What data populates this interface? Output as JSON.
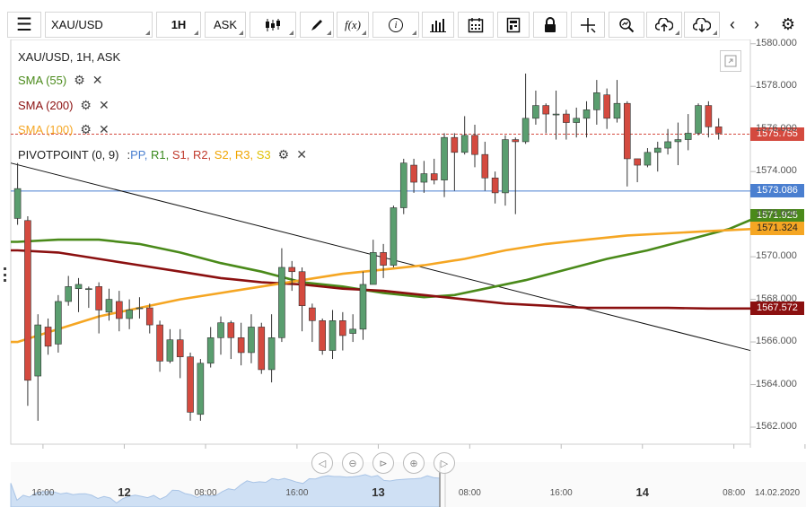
{
  "toolbar": {
    "menu_icon": "hamburger-icon",
    "symbol": "XAU/USD",
    "timeframe": "1H",
    "price_type": "ASK",
    "tools": [
      "candles-icon",
      "draw-icon",
      "function-icon",
      "info-icon",
      "bar-chart-icon",
      "calendar-icon",
      "calculator-icon",
      "lock-icon",
      "crosshair-icon",
      "zoom-icon",
      "upload-icon",
      "download-icon",
      "prev-icon",
      "next-icon",
      "settings-icon"
    ]
  },
  "legend": {
    "title": "XAU/USD, 1H, ASK",
    "sma55": "SMA (55)",
    "sma200": "SMA (200)",
    "sma100": "SMA (100)",
    "pivot": "PIVOTPOINT (0, 9)",
    "pivot_sep": ":",
    "pivot_items": [
      {
        "label": "PP,",
        "color": "#4a7fd0"
      },
      {
        "label": "R1,",
        "color": "#3a8a1e"
      },
      {
        "label": "S1,",
        "color": "#c0392b"
      },
      {
        "label": "R2,",
        "color": "#c0392b"
      },
      {
        "label": "S2,",
        "color": "#f0a500"
      },
      {
        "label": "R3,",
        "color": "#f0a500"
      },
      {
        "label": "S3",
        "color": "#e0c000"
      }
    ]
  },
  "colors": {
    "up": "#5a9e6f",
    "down": "#d44a3f",
    "sma55": "#4a8a1a",
    "sma200": "#8b1010",
    "sma100": "#f5a623",
    "pp": "#4a7fd0",
    "trend": "#111111"
  },
  "chart_data": {
    "type": "line",
    "title": "XAU/USD, 1H, ASK",
    "y_axis": {
      "min": 1561.2,
      "max": 1580.2,
      "ticks": [
        "1562.000",
        "1564.000",
        "1566.000",
        "1568.000",
        "1570.000",
        "1572.000",
        "1574.000",
        "1576.000",
        "1578.000",
        "1580.000"
      ]
    },
    "x_axis": {
      "ticks": [
        {
          "label": "16:00",
          "index": 2.5,
          "bold": false
        },
        {
          "label": "12",
          "index": 10.5,
          "bold": true
        },
        {
          "label": "08:00",
          "index": 18.5,
          "bold": false
        },
        {
          "label": "16:00",
          "index": 27.5,
          "bold": false
        },
        {
          "label": "13",
          "index": 35.5,
          "bold": true
        },
        {
          "label": "08:00",
          "index": 44.5,
          "bold": false
        },
        {
          "label": "16:00",
          "index": 53.5,
          "bold": false
        },
        {
          "label": "14",
          "index": 61.5,
          "bold": true
        },
        {
          "label": "08:00",
          "index": 70.5,
          "bold": false
        },
        {
          "label": "14.02.2020",
          "index": 77.5,
          "bold": false
        }
      ]
    },
    "candles": [
      [
        1571.8,
        1573.2,
        1574.4,
        1571.5
      ],
      [
        1571.7,
        1564.2,
        1571.9,
        1563.0
      ],
      [
        1564.4,
        1566.8,
        1567.3,
        1562.3
      ],
      [
        1566.7,
        1565.8,
        1567.1,
        1565.4
      ],
      [
        1565.9,
        1567.9,
        1568.2,
        1565.5
      ],
      [
        1567.9,
        1568.6,
        1569.1,
        1567.7
      ],
      [
        1568.5,
        1568.7,
        1569.0,
        1567.4
      ],
      [
        1568.5,
        1568.5,
        1568.6,
        1567.6
      ],
      [
        1568.6,
        1567.5,
        1568.8,
        1566.4
      ],
      [
        1567.4,
        1568.0,
        1568.5,
        1567.0
      ],
      [
        1567.9,
        1567.1,
        1568.4,
        1566.5
      ],
      [
        1567.1,
        1567.5,
        1568.0,
        1566.6
      ],
      [
        1567.6,
        1567.6,
        1568.1,
        1567.1
      ],
      [
        1567.6,
        1566.8,
        1567.8,
        1566.4
      ],
      [
        1566.8,
        1565.1,
        1567.0,
        1564.6
      ],
      [
        1565.1,
        1566.1,
        1566.6,
        1565.0
      ],
      [
        1566.1,
        1565.3,
        1566.6,
        1564.3
      ],
      [
        1565.3,
        1562.7,
        1565.5,
        1562.3
      ],
      [
        1562.6,
        1565.0,
        1565.2,
        1562.3
      ],
      [
        1565.0,
        1566.2,
        1566.7,
        1564.8
      ],
      [
        1566.2,
        1566.9,
        1567.2,
        1565.4
      ],
      [
        1566.9,
        1566.2,
        1567.0,
        1565.2
      ],
      [
        1566.2,
        1565.5,
        1566.9,
        1564.9
      ],
      [
        1565.5,
        1566.7,
        1567.3,
        1565.0
      ],
      [
        1566.7,
        1564.7,
        1566.9,
        1564.5
      ],
      [
        1564.7,
        1566.2,
        1567.3,
        1564.1
      ],
      [
        1566.2,
        1569.5,
        1570.4,
        1566.0
      ],
      [
        1569.5,
        1569.3,
        1569.8,
        1568.4
      ],
      [
        1569.3,
        1567.7,
        1569.5,
        1566.5
      ],
      [
        1567.6,
        1567.0,
        1567.8,
        1566.0
      ],
      [
        1567.0,
        1565.6,
        1567.1,
        1565.4
      ],
      [
        1565.6,
        1567.0,
        1567.5,
        1565.2
      ],
      [
        1567.0,
        1566.3,
        1567.4,
        1565.6
      ],
      [
        1566.4,
        1566.6,
        1567.3,
        1566.0
      ],
      [
        1566.6,
        1568.7,
        1569.3,
        1566.1
      ],
      [
        1568.7,
        1570.2,
        1570.8,
        1568.7
      ],
      [
        1570.2,
        1569.6,
        1570.6,
        1569.0
      ],
      [
        1569.6,
        1572.3,
        1572.4,
        1569.5
      ],
      [
        1572.3,
        1574.4,
        1574.6,
        1572.0
      ],
      [
        1574.3,
        1573.5,
        1574.6,
        1573.0
      ],
      [
        1573.5,
        1573.9,
        1574.5,
        1573.0
      ],
      [
        1573.9,
        1573.6,
        1574.6,
        1573.4
      ],
      [
        1573.6,
        1575.6,
        1575.8,
        1572.8
      ],
      [
        1575.6,
        1574.9,
        1575.8,
        1573.1
      ],
      [
        1574.9,
        1575.7,
        1576.6,
        1574.8
      ],
      [
        1575.7,
        1574.8,
        1576.2,
        1574.2
      ],
      [
        1574.8,
        1573.7,
        1575.4,
        1573.1
      ],
      [
        1573.7,
        1573.0,
        1574.0,
        1572.5
      ],
      [
        1573.0,
        1575.5,
        1575.7,
        1572.4
      ],
      [
        1575.5,
        1575.4,
        1575.6,
        1572.0
      ],
      [
        1575.4,
        1576.5,
        1578.6,
        1575.3
      ],
      [
        1576.5,
        1577.1,
        1577.8,
        1576.2
      ],
      [
        1577.1,
        1576.7,
        1577.2,
        1575.8
      ],
      [
        1576.7,
        1576.7,
        1577.8,
        1575.5
      ],
      [
        1576.7,
        1576.3,
        1576.9,
        1575.5
      ],
      [
        1576.3,
        1576.5,
        1577.0,
        1575.6
      ],
      [
        1576.5,
        1576.9,
        1577.3,
        1575.6
      ],
      [
        1576.9,
        1577.7,
        1578.3,
        1576.2
      ],
      [
        1577.6,
        1576.5,
        1577.9,
        1576.0
      ],
      [
        1576.5,
        1577.2,
        1578.3,
        1576.3
      ],
      [
        1577.2,
        1574.6,
        1577.3,
        1573.3
      ],
      [
        1574.6,
        1574.3,
        1574.6,
        1573.5
      ],
      [
        1574.3,
        1574.9,
        1575.1,
        1574.2
      ],
      [
        1574.9,
        1575.1,
        1575.4,
        1574.0
      ],
      [
        1575.1,
        1575.4,
        1576.0,
        1574.8
      ],
      [
        1575.4,
        1575.5,
        1576.3,
        1574.3
      ],
      [
        1575.5,
        1575.8,
        1576.7,
        1575.0
      ],
      [
        1575.8,
        1577.1,
        1577.2,
        1575.7
      ],
      [
        1577.1,
        1576.1,
        1577.3,
        1575.6
      ],
      [
        1576.1,
        1575.8,
        1576.5,
        1575.5
      ]
    ],
    "series": [
      {
        "name": "SMA (55)",
        "color": "#4a8a1a",
        "points": [
          [
            0,
            1570.7
          ],
          [
            4,
            1570.8
          ],
          [
            8,
            1570.8
          ],
          [
            12,
            1570.6
          ],
          [
            16,
            1570.2
          ],
          [
            20,
            1569.7
          ],
          [
            24,
            1569.3
          ],
          [
            28,
            1568.8
          ],
          [
            32,
            1568.6
          ],
          [
            36,
            1568.3
          ],
          [
            40,
            1568.1
          ],
          [
            43,
            1568.2
          ],
          [
            46,
            1568.5
          ],
          [
            50,
            1568.9
          ],
          [
            54,
            1569.4
          ],
          [
            58,
            1569.9
          ],
          [
            62,
            1570.3
          ],
          [
            66,
            1570.8
          ],
          [
            70,
            1571.3
          ],
          [
            73,
            1571.9
          ]
        ]
      },
      {
        "name": "SMA (200)",
        "color": "#8b1010",
        "points": [
          [
            0,
            1570.3
          ],
          [
            4,
            1570.2
          ],
          [
            8,
            1569.9
          ],
          [
            12,
            1569.6
          ],
          [
            16,
            1569.3
          ],
          [
            20,
            1569.0
          ],
          [
            24,
            1568.8
          ],
          [
            28,
            1568.7
          ],
          [
            32,
            1568.5
          ],
          [
            36,
            1568.4
          ],
          [
            40,
            1568.2
          ],
          [
            44,
            1568.0
          ],
          [
            48,
            1567.8
          ],
          [
            52,
            1567.7
          ],
          [
            56,
            1567.6
          ],
          [
            60,
            1567.6
          ],
          [
            64,
            1567.6
          ],
          [
            68,
            1567.57
          ],
          [
            73,
            1567.57
          ]
        ]
      },
      {
        "name": "SMA (100)",
        "color": "#f5a623",
        "points": [
          [
            0,
            1566.0
          ],
          [
            4,
            1566.6
          ],
          [
            8,
            1567.2
          ],
          [
            12,
            1567.6
          ],
          [
            16,
            1568.0
          ],
          [
            20,
            1568.3
          ],
          [
            24,
            1568.6
          ],
          [
            28,
            1568.9
          ],
          [
            32,
            1569.2
          ],
          [
            36,
            1569.4
          ],
          [
            40,
            1569.6
          ],
          [
            44,
            1569.9
          ],
          [
            48,
            1570.3
          ],
          [
            52,
            1570.6
          ],
          [
            56,
            1570.8
          ],
          [
            60,
            1571.0
          ],
          [
            64,
            1571.1
          ],
          [
            68,
            1571.2
          ],
          [
            73,
            1571.32
          ]
        ]
      }
    ],
    "pivot_level": 1573.086,
    "current_price": 1575.755,
    "price_tags": [
      {
        "label": "1575.755",
        "value": 1575.755,
        "bg": "#d44a3f",
        "fg": "#ffffff"
      },
      {
        "label": "1573.086",
        "value": 1573.086,
        "bg": "#4a7fd0",
        "fg": "#ffffff"
      },
      {
        "label": "1571.925",
        "value": 1571.925,
        "bg": "#4a8a1a",
        "fg": "#ffffff"
      },
      {
        "label": "1571.324",
        "value": 1571.324,
        "bg": "#f5a623",
        "fg": "#222222"
      },
      {
        "label": "1567.572",
        "value": 1567.572,
        "bg": "#8b1010",
        "fg": "#ffffff"
      }
    ],
    "trendline": [
      [
        0,
        1574.4
      ],
      [
        76,
        1565.6
      ]
    ]
  }
}
